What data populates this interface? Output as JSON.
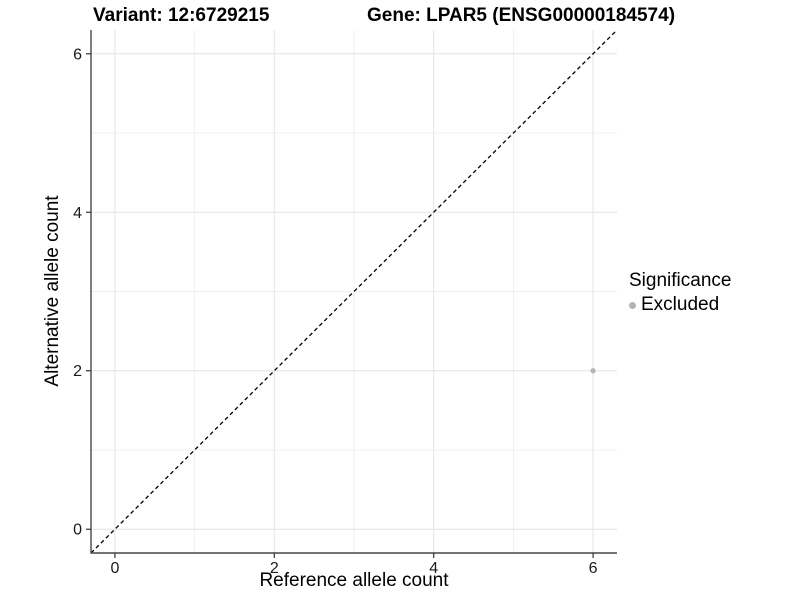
{
  "titles": {
    "variant": "Variant: 12:6729215",
    "gene": "Gene: LPAR5 (ENSG00000184574)"
  },
  "legend": {
    "title": "Significance",
    "items": [
      {
        "label": "Excluded",
        "color": "#b4b4b4"
      }
    ]
  },
  "colors": {
    "background": "#ffffff",
    "grid_major": "#e4e4e4",
    "grid_minor": "#f0f0f0",
    "axis_line": "#464646",
    "tick_mark": "#333333",
    "tick_text": "#1a1a1a",
    "point": "#b4b4b4",
    "reference_line": "#000000"
  },
  "chart_data": {
    "type": "scatter",
    "title": "Variant: 12:6729215 | Gene: LPAR5 (ENSG00000184574)",
    "xlabel": "Reference allele count",
    "ylabel": "Alternative allele count",
    "xlim": [
      -0.3,
      6.3
    ],
    "ylim": [
      -0.3,
      6.3
    ],
    "x_ticks": [
      0,
      2,
      4,
      6
    ],
    "y_ticks": [
      0,
      2,
      4,
      6
    ],
    "minor_gridlines": [
      1,
      3,
      5
    ],
    "grid": true,
    "legend_position": "right",
    "series": [
      {
        "name": "Excluded",
        "color": "#b4b4b4",
        "points": [
          {
            "x": 6,
            "y": 2
          }
        ]
      }
    ],
    "reference_line": {
      "type": "identity",
      "slope": 1,
      "intercept": 0,
      "style": "dashed",
      "color": "#000000"
    }
  }
}
